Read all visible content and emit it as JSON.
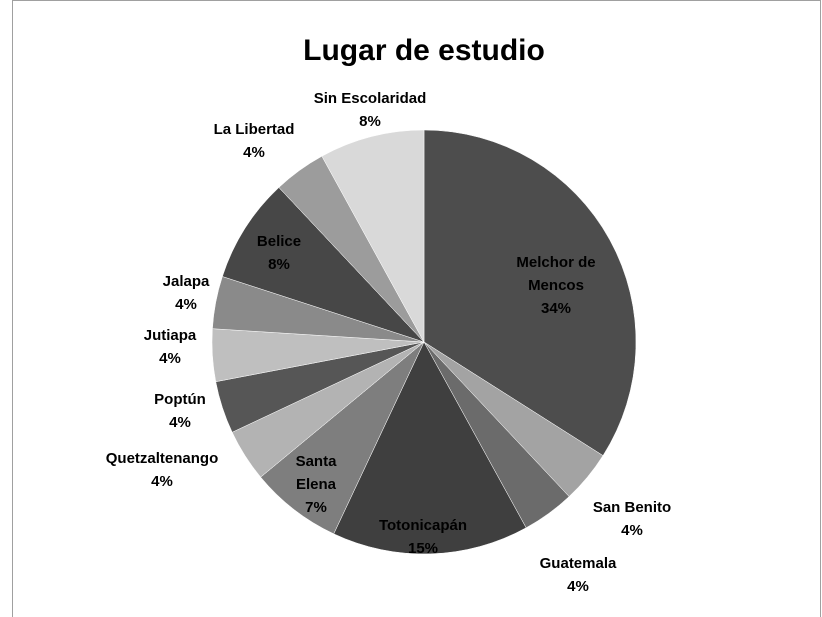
{
  "chart_data": {
    "type": "pie",
    "title": "Lugar de estudio",
    "categories": [
      "Melchor de Mencos",
      "San Benito",
      "Guatemala",
      "Totonicapán",
      "Santa Elena",
      "Quetzaltenango",
      "Poptún",
      "Jutiapa",
      "Jalapa",
      "Belice",
      "La Libertad",
      "Sin Escolaridad"
    ],
    "values": [
      34,
      4,
      4,
      15,
      7,
      4,
      4,
      4,
      4,
      8,
      4,
      8
    ],
    "value_labels": [
      "34%",
      "4%",
      "4%",
      "15%",
      "7%",
      "4%",
      "4%",
      "4%",
      "4%",
      "8%",
      "4%",
      "8%"
    ],
    "colors": [
      "#4d4d4d",
      "#a3a3a3",
      "#6b6b6b",
      "#3f3f3f",
      "#7e7e7e",
      "#b3b3b3",
      "#565656",
      "#bfbfbf",
      "#8a8a8a",
      "#474747",
      "#9c9c9c",
      "#d9d9d9"
    ]
  }
}
